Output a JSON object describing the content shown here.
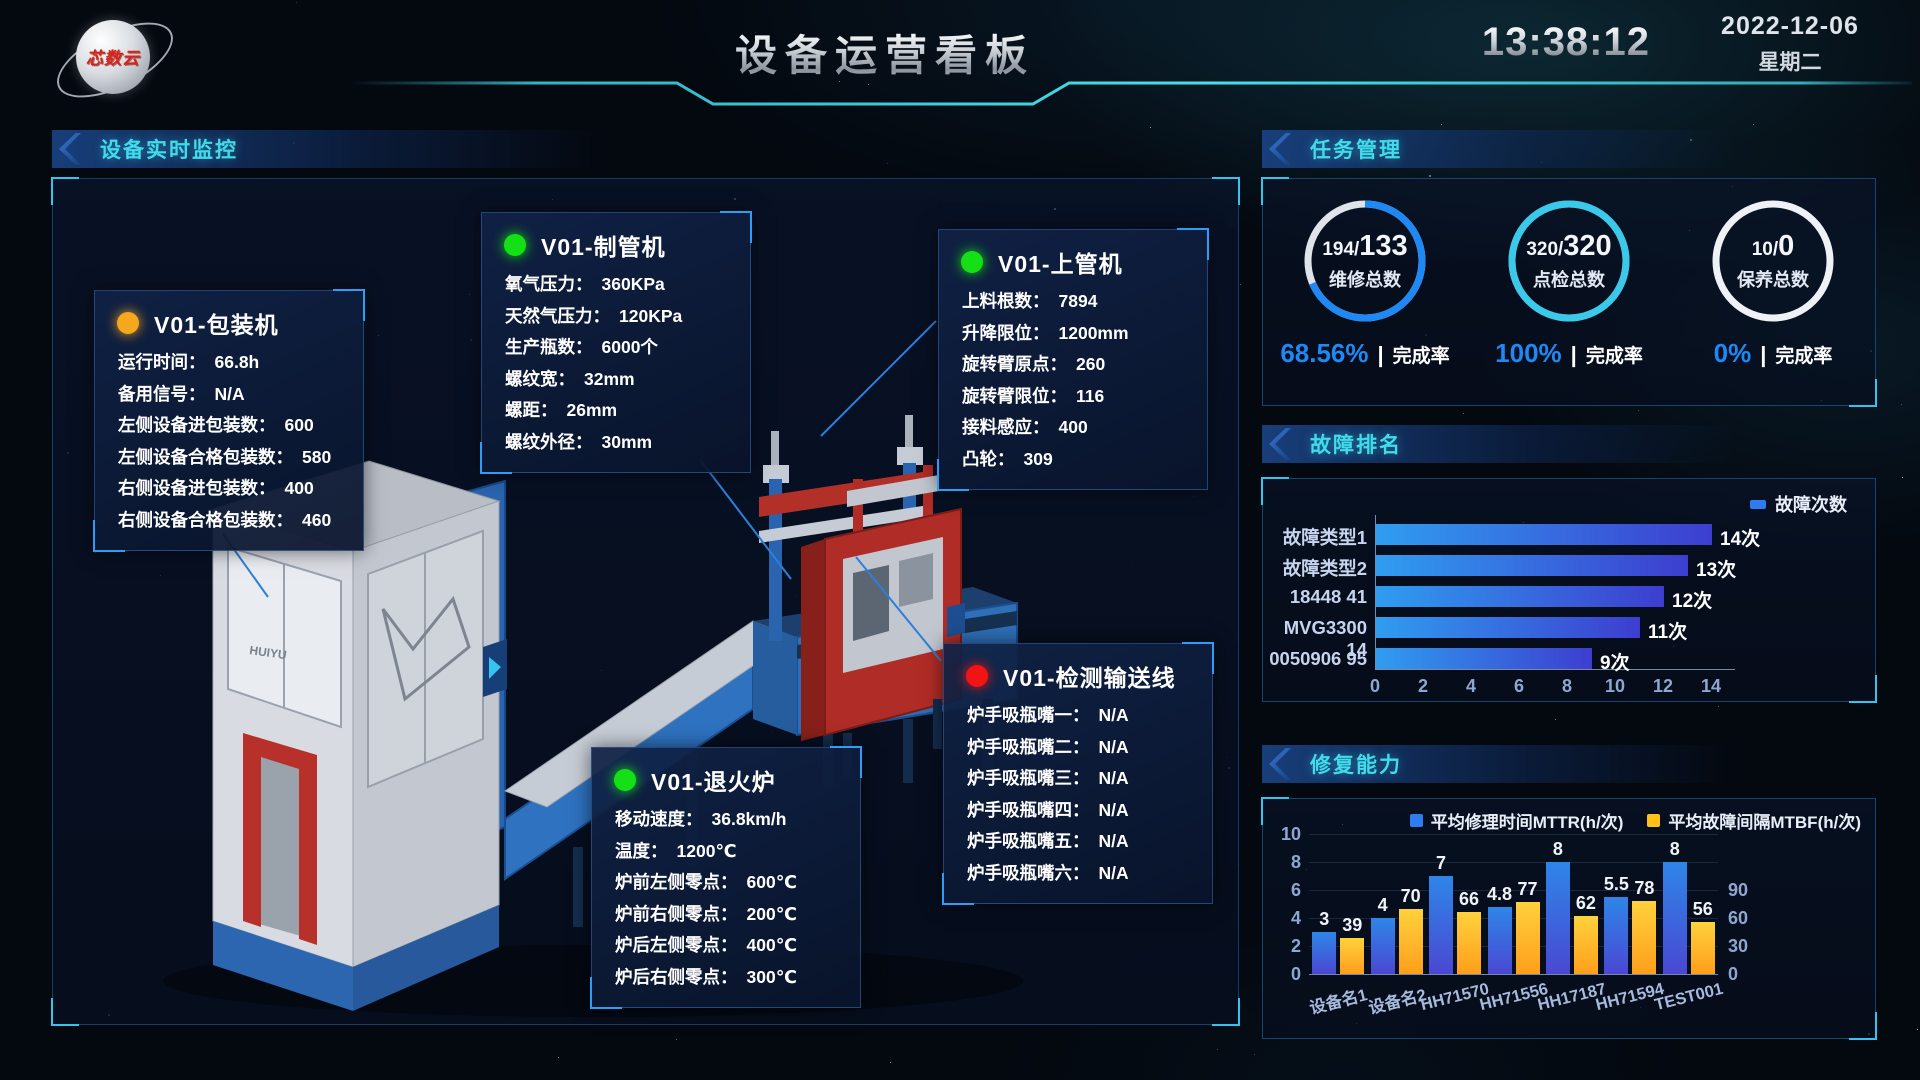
{
  "header": {
    "logo_text": "芯数云",
    "title": "设备运营看板",
    "time": "13:38:12",
    "date": "2022-12-06",
    "weekday": "星期二"
  },
  "sections": {
    "monitor": "设备实时监控",
    "tasks": "任务管理",
    "faults": "故障排名",
    "repair": "修复能力"
  },
  "monitor": {
    "brand": "HUIYU",
    "machines": [
      {
        "name": "V01-包装机",
        "status": "warning",
        "status_color": "#f5a81e",
        "rows": [
          {
            "label": "运行时间",
            "value": "66.8h"
          },
          {
            "label": "备用信号",
            "value": "N/A"
          },
          {
            "label": "左侧设备进包装数",
            "value": "600"
          },
          {
            "label": "左侧设备合格包装数",
            "value": "580"
          },
          {
            "label": "右侧设备进包装数",
            "value": "400"
          },
          {
            "label": "右侧设备合格包装数",
            "value": "460"
          }
        ]
      },
      {
        "name": "V01-制管机",
        "status": "running",
        "status_color": "#15e015",
        "rows": [
          {
            "label": "氧气压力",
            "value": "360KPa"
          },
          {
            "label": "天然气压力",
            "value": "120KPa"
          },
          {
            "label": "生产瓶数",
            "value": "6000个"
          },
          {
            "label": "螺纹宽",
            "value": "32mm"
          },
          {
            "label": "螺距",
            "value": "26mm"
          },
          {
            "label": "螺纹外径",
            "value": "30mm"
          }
        ]
      },
      {
        "name": "V01-上管机",
        "status": "running",
        "status_color": "#15e015",
        "rows": [
          {
            "label": "上料根数",
            "value": "7894"
          },
          {
            "label": "升降限位",
            "value": "1200mm"
          },
          {
            "label": "旋转臂原点",
            "value": "260"
          },
          {
            "label": "旋转臂限位",
            "value": "116"
          },
          {
            "label": "接料感应",
            "value": "400"
          },
          {
            "label": "凸轮",
            "value": "309"
          }
        ]
      },
      {
        "name": "V01-检测输送线",
        "status": "fault",
        "status_color": "#f01414",
        "rows": [
          {
            "label": "炉手吸瓶嘴一",
            "value": "N/A"
          },
          {
            "label": "炉手吸瓶嘴二",
            "value": "N/A"
          },
          {
            "label": "炉手吸瓶嘴三",
            "value": "N/A"
          },
          {
            "label": "炉手吸瓶嘴四",
            "value": "N/A"
          },
          {
            "label": "炉手吸瓶嘴五",
            "value": "N/A"
          },
          {
            "label": "炉手吸瓶嘴六",
            "value": "N/A"
          }
        ]
      },
      {
        "name": "V01-退火炉",
        "status": "running",
        "status_color": "#15e015",
        "rows": [
          {
            "label": "移动速度",
            "value": "36.8km/h"
          },
          {
            "label": "温度",
            "value": "1200℃"
          },
          {
            "label": "炉前左侧零点",
            "value": "600℃"
          },
          {
            "label": "炉前右侧零点",
            "value": "200℃"
          },
          {
            "label": "炉后左侧零点",
            "value": "400℃"
          },
          {
            "label": "炉后右侧零点",
            "value": "300℃"
          }
        ]
      }
    ]
  },
  "tasks": {
    "gauges": [
      {
        "fraction_prefix": "194/",
        "fraction_main": "133",
        "label": "维修总数",
        "percent": "68.56%",
        "rate_label": "完成率",
        "progress": 68.56,
        "ring_color": "#1e88f5",
        "ring_bg": "#dfe3ea"
      },
      {
        "fraction_prefix": "320/",
        "fraction_main": "320",
        "label": "点检总数",
        "percent": "100%",
        "rate_label": "完成率",
        "progress": 100,
        "ring_color": "#3cc9e9",
        "ring_bg": "#3cc9e9"
      },
      {
        "fraction_prefix": "10/",
        "fraction_main": "0",
        "label": "保养总数",
        "percent": "0%",
        "rate_label": "完成率",
        "progress": 0,
        "ring_color": "#1e88f5",
        "ring_bg": "#eef2f7"
      }
    ]
  },
  "colors": {
    "accent_cyan": "#41dcec",
    "percent_blue": "#1e88f5",
    "fault_bar_from": "#2f9df0",
    "fault_bar_to": "#3d3ecf",
    "mttr_top": "#2e86e8",
    "mttr_bottom": "#4a48d2",
    "mtbf_top": "#ffd23c",
    "mtbf_bottom": "#ff9e1b",
    "legend_blue": "#2f7bf0",
    "legend_yellow": "#ffc21a"
  },
  "chart_data": [
    {
      "type": "bar",
      "orientation": "horizontal",
      "title": "故障排名",
      "legend": [
        "故障次数"
      ],
      "categories": [
        "故障类型1",
        "故障类型2",
        "18448 41",
        "MVG3300 14",
        "0050906 95"
      ],
      "values": [
        14,
        13,
        12,
        11,
        9
      ],
      "value_suffix": "次",
      "xlim": [
        0,
        14
      ],
      "xticks": [
        0,
        2,
        4,
        6,
        8,
        10,
        12,
        14
      ],
      "grid": false,
      "legend_position": "top-right"
    },
    {
      "type": "bar",
      "title": "修复能力",
      "categories": [
        "设备名1",
        "设备名2",
        "HH71570",
        "HH71556",
        "HH17187",
        "HH71594",
        "TEST001"
      ],
      "series": [
        {
          "name": "平均修理时间MTTR(h/次)",
          "axis": "left",
          "values": [
            3,
            4,
            7,
            4.8,
            8,
            5.5,
            8
          ]
        },
        {
          "name": "平均故障间隔MTBF(h/次)",
          "axis": "right",
          "values": [
            39,
            70,
            66,
            77,
            62,
            78,
            56
          ]
        }
      ],
      "left_ylim": [
        0,
        10
      ],
      "left_yticks": [
        0,
        2,
        4,
        6,
        8,
        10
      ],
      "right_ylim": [
        0,
        150
      ],
      "right_yticks": [
        0,
        30,
        60,
        90
      ],
      "grid": true,
      "legend_position": "top-right"
    }
  ]
}
